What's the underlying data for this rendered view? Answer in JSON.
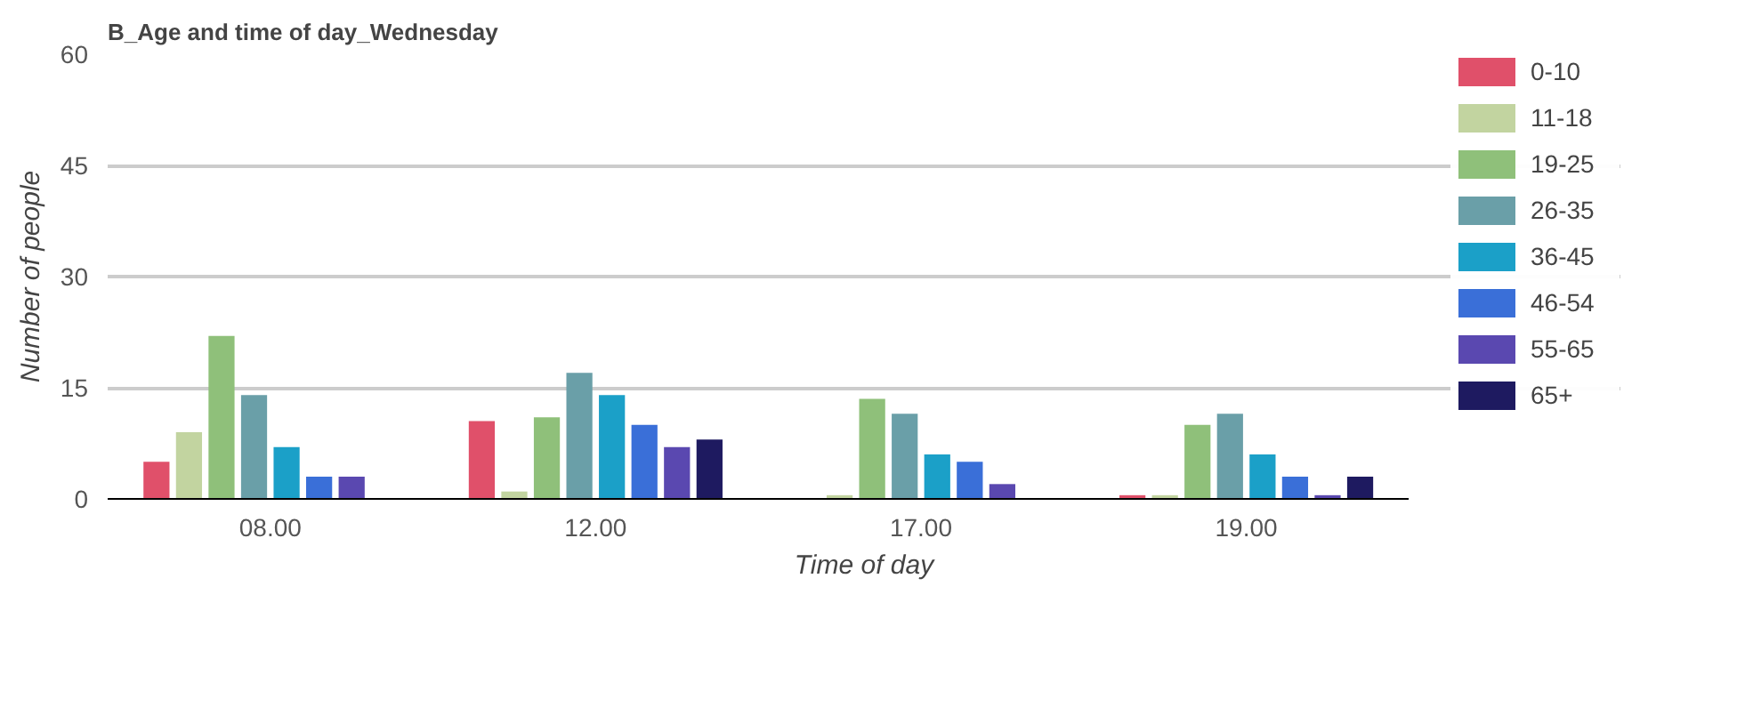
{
  "chart_data": {
    "type": "bar",
    "title": "B_Age and time of day_Wednesday",
    "xlabel": "Time of day",
    "ylabel": "Number of people",
    "categories": [
      "08.00",
      "12.00",
      "17.00",
      "19.00"
    ],
    "series": [
      {
        "name": "0-10",
        "color": "#e0506a",
        "values": [
          5,
          10.5,
          0,
          0.5
        ]
      },
      {
        "name": "11-18",
        "color": "#c2d4a0",
        "values": [
          9,
          1,
          0.5,
          0.5
        ]
      },
      {
        "name": "19-25",
        "color": "#8fc07a",
        "values": [
          22,
          11,
          13.5,
          10
        ]
      },
      {
        "name": "26-35",
        "color": "#6a9fa8",
        "values": [
          14,
          17,
          11.5,
          11.5
        ]
      },
      {
        "name": "36-45",
        "color": "#1ba0c8",
        "values": [
          7,
          14,
          6,
          6
        ]
      },
      {
        "name": "46-54",
        "color": "#3a6fd8",
        "values": [
          3,
          10,
          5,
          3
        ]
      },
      {
        "name": "55-65",
        "color": "#5a48b0",
        "values": [
          3,
          7,
          2,
          0.5
        ]
      },
      {
        "name": "65+",
        "color": "#1e1a60",
        "values": [
          0,
          8,
          0,
          3
        ]
      }
    ],
    "ylim": [
      0,
      60
    ],
    "yticks": [
      0,
      15,
      30,
      45,
      60
    ],
    "grid": "y",
    "legend": "right"
  }
}
